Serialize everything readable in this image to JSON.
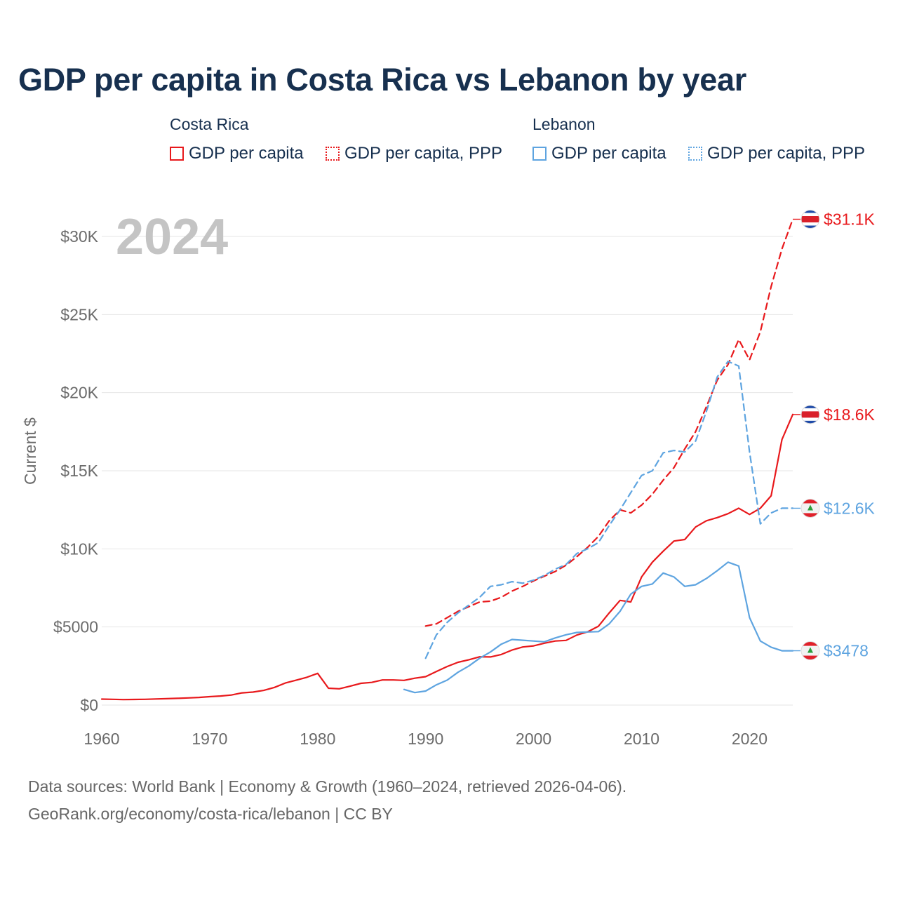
{
  "title": "GDP per capita in Costa Rica vs Lebanon by year",
  "legend": {
    "groups": [
      {
        "country": "Costa Rica",
        "color": "#e8191c",
        "items": [
          {
            "label": "GDP per capita",
            "style": "solid"
          },
          {
            "label": "GDP per capita, PPP",
            "style": "dotted"
          }
        ]
      },
      {
        "country": "Lebanon",
        "color": "#5ea4e0",
        "items": [
          {
            "label": "GDP per capita",
            "style": "solid"
          },
          {
            "label": "GDP per capita, PPP",
            "style": "dotted"
          }
        ]
      }
    ]
  },
  "year_label": "2024",
  "footer": {
    "line1": "Data sources: World Bank | Economy & Growth (1960–2024, retrieved 2026-04-06).",
    "line2": "GeoRank.org/economy/costa-rica/lebanon | CC BY"
  },
  "chart_data": {
    "type": "line",
    "title": "GDP per capita in Costa Rica vs Lebanon by year",
    "xlabel": "",
    "ylabel": "Current $",
    "xlim": [
      1960,
      2024
    ],
    "ylim": [
      0,
      32000
    ],
    "grid": true,
    "x_ticks": [
      1960,
      1970,
      1980,
      1990,
      2000,
      2010,
      2020
    ],
    "y_ticks": [
      {
        "value": 0,
        "label": "$0"
      },
      {
        "value": 5000,
        "label": "$5000"
      },
      {
        "value": 10000,
        "label": "$10K"
      },
      {
        "value": 15000,
        "label": "$15K"
      },
      {
        "value": 20000,
        "label": "$20K"
      },
      {
        "value": 25000,
        "label": "$25K"
      },
      {
        "value": 30000,
        "label": "$30K"
      }
    ],
    "series": [
      {
        "name": "Costa Rica GDP per capita",
        "country": "Costa Rica",
        "dash": "solid",
        "color": "#e8191c",
        "end_label": "$18.6K",
        "flag": "costa-rica",
        "x": [
          1960,
          1961,
          1962,
          1963,
          1964,
          1965,
          1966,
          1967,
          1968,
          1969,
          1970,
          1971,
          1972,
          1973,
          1974,
          1975,
          1976,
          1977,
          1978,
          1979,
          1980,
          1981,
          1982,
          1983,
          1984,
          1985,
          1986,
          1987,
          1988,
          1989,
          1990,
          1991,
          1992,
          1993,
          1994,
          1995,
          1996,
          1997,
          1998,
          1999,
          2000,
          2001,
          2002,
          2003,
          2004,
          2005,
          2006,
          2007,
          2008,
          2009,
          2010,
          2011,
          2012,
          2013,
          2014,
          2015,
          2016,
          2017,
          2018,
          2019,
          2020,
          2021,
          2022,
          2023,
          2024
        ],
        "values": [
          380,
          370,
          350,
          360,
          370,
          390,
          410,
          430,
          460,
          490,
          540,
          580,
          640,
          780,
          830,
          940,
          1130,
          1410,
          1590,
          1780,
          2030,
          1080,
          1040,
          1210,
          1390,
          1450,
          1610,
          1610,
          1580,
          1720,
          1820,
          2150,
          2470,
          2740,
          2900,
          3090,
          3080,
          3240,
          3520,
          3720,
          3790,
          3960,
          4100,
          4140,
          4480,
          4690,
          5050,
          5900,
          6700,
          6600,
          8200,
          9150,
          9850,
          10500,
          10600,
          11400,
          11800,
          12000,
          12250,
          12600,
          12200,
          12600,
          13400,
          17000,
          18600
        ]
      },
      {
        "name": "Costa Rica GDP per capita, PPP",
        "country": "Costa Rica",
        "dash": "dashed",
        "color": "#e8191c",
        "end_label": "$31.1K",
        "flag": "costa-rica",
        "x": [
          1990,
          1991,
          1992,
          1993,
          1994,
          1995,
          1996,
          1997,
          1998,
          1999,
          2000,
          2001,
          2002,
          2003,
          2004,
          2005,
          2006,
          2007,
          2008,
          2009,
          2010,
          2011,
          2012,
          2013,
          2014,
          2015,
          2016,
          2017,
          2018,
          2019,
          2020,
          2021,
          2022,
          2023,
          2024
        ],
        "values": [
          5060,
          5200,
          5600,
          6000,
          6300,
          6600,
          6650,
          6900,
          7300,
          7600,
          7950,
          8250,
          8550,
          8950,
          9500,
          10100,
          10800,
          11800,
          12500,
          12300,
          12800,
          13500,
          14400,
          15200,
          16400,
          17500,
          19100,
          20800,
          21800,
          23400,
          22100,
          23900,
          26800,
          29200,
          31100
        ]
      },
      {
        "name": "Lebanon GDP per capita",
        "country": "Lebanon",
        "dash": "solid",
        "color": "#5ea4e0",
        "end_label": "$3478",
        "flag": "lebanon",
        "x": [
          1988,
          1989,
          1990,
          1991,
          1992,
          1993,
          1994,
          1995,
          1996,
          1997,
          1998,
          1999,
          2000,
          2001,
          2002,
          2003,
          2004,
          2005,
          2006,
          2007,
          2008,
          2009,
          2010,
          2011,
          2012,
          2013,
          2014,
          2015,
          2016,
          2017,
          2018,
          2019,
          2020,
          2021,
          2022,
          2023,
          2024
        ],
        "values": [
          1000,
          800,
          900,
          1300,
          1600,
          2100,
          2500,
          3000,
          3400,
          3900,
          4200,
          4150,
          4100,
          4050,
          4300,
          4500,
          4650,
          4680,
          4700,
          5200,
          6000,
          7100,
          7600,
          7750,
          8450,
          8200,
          7600,
          7700,
          8100,
          8600,
          9150,
          8900,
          5600,
          4100,
          3700,
          3478,
          3478
        ]
      },
      {
        "name": "Lebanon GDP per capita, PPP",
        "country": "Lebanon",
        "dash": "dashed",
        "color": "#5ea4e0",
        "end_label": "$12.6K",
        "flag": "lebanon",
        "x": [
          1990,
          1991,
          1992,
          1993,
          1994,
          1995,
          1996,
          1997,
          1998,
          1999,
          2000,
          2001,
          2002,
          2003,
          2004,
          2005,
          2006,
          2007,
          2008,
          2009,
          2010,
          2011,
          2012,
          2013,
          2014,
          2015,
          2016,
          2017,
          2018,
          2019,
          2020,
          2021,
          2022,
          2023,
          2024
        ],
        "values": [
          3000,
          4500,
          5300,
          5900,
          6400,
          6900,
          7600,
          7700,
          7900,
          7800,
          8000,
          8300,
          8700,
          9000,
          9700,
          10000,
          10400,
          11500,
          12500,
          13600,
          14700,
          15000,
          16150,
          16300,
          16200,
          16900,
          18800,
          21000,
          22000,
          21700,
          16200,
          11600,
          12300,
          12600,
          12600
        ]
      }
    ]
  }
}
